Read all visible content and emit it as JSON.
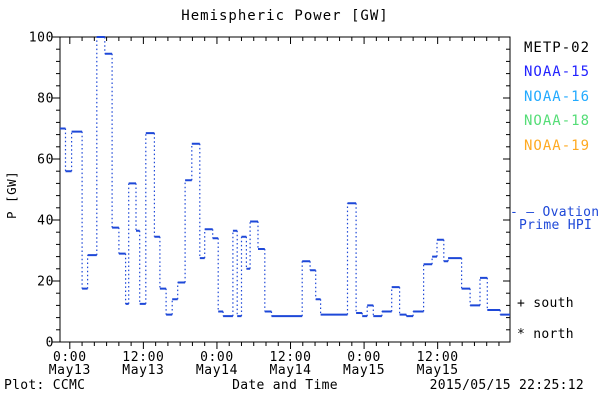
{
  "title": "Hemispheric Power [GW]",
  "footer": {
    "plot_credit": "Plot: CCMC",
    "timestamp": "2015/05/15 22:25:12"
  },
  "axes": {
    "x_label": "Date and Time",
    "y_label": "P [GW]",
    "y_ticks": [
      "0",
      "20",
      "40",
      "60",
      "80",
      "100"
    ],
    "x_ticks": [
      {
        "time": "0:00",
        "date": "May13"
      },
      {
        "time": "12:00",
        "date": "May13"
      },
      {
        "time": "0:00",
        "date": "May14"
      },
      {
        "time": "12:00",
        "date": "May14"
      },
      {
        "time": "0:00",
        "date": "May15"
      },
      {
        "time": "12:00",
        "date": "May15"
      }
    ]
  },
  "legend": {
    "satellites": [
      {
        "label": "METP-02",
        "color": "#000000"
      },
      {
        "label": "NOAA-15",
        "color": "#2222ff"
      },
      {
        "label": "NOAA-16",
        "color": "#22aaff"
      },
      {
        "label": "NOAA-18",
        "color": "#55dd77"
      },
      {
        "label": "NOAA-19",
        "color": "#ffaa22"
      }
    ],
    "ovation": {
      "dash_prefix": "- —",
      "line1": "Ovation",
      "line2": "Prime HPI",
      "color": "#1e48d8"
    },
    "markers": [
      {
        "symbol": "+",
        "label": "south"
      },
      {
        "symbol": "*",
        "label": "north"
      }
    ]
  },
  "chart_data": {
    "type": "line",
    "style": "steps-post",
    "title": "Hemispheric Power [GW]",
    "xlabel": "Date and Time",
    "ylabel": "P [GW]",
    "ylim": [
      0,
      100
    ],
    "y_major_tick": 20,
    "y_minor_tick": 4,
    "x_unit": "hours since 2015-05-13 00:00",
    "xlim": [
      -1.6,
      71.8
    ],
    "x_major_tick_hours": 12,
    "x_minor_tick_hours": 2,
    "x_major_tick_values": [
      0,
      12,
      24,
      36,
      48,
      60
    ],
    "grid": false,
    "legend_position": "right",
    "series": [
      {
        "name": "Ovation Prime HPI",
        "color": "#1e48d8",
        "steps": [
          [
            -1.6,
            70
          ],
          [
            -0.7,
            56
          ],
          [
            0.3,
            69
          ],
          [
            2.0,
            17.5
          ],
          [
            2.9,
            28.5
          ],
          [
            4.4,
            100
          ],
          [
            5.7,
            94.5
          ],
          [
            6.9,
            37.5
          ],
          [
            8.0,
            29
          ],
          [
            9.1,
            12.5
          ],
          [
            9.6,
            52
          ],
          [
            10.8,
            36.5
          ],
          [
            11.4,
            12.5
          ],
          [
            12.4,
            68.5
          ],
          [
            13.8,
            34.5
          ],
          [
            14.7,
            17.5
          ],
          [
            15.7,
            9
          ],
          [
            16.7,
            14
          ],
          [
            17.6,
            19.5
          ],
          [
            18.8,
            53
          ],
          [
            19.9,
            65
          ],
          [
            21.2,
            27.5
          ],
          [
            22.0,
            37
          ],
          [
            23.3,
            34
          ],
          [
            24.2,
            10
          ],
          [
            25.0,
            8.5
          ],
          [
            26.6,
            36.5
          ],
          [
            27.3,
            8.5
          ],
          [
            28.0,
            34.5
          ],
          [
            28.8,
            24
          ],
          [
            29.4,
            39.5
          ],
          [
            30.7,
            30.5
          ],
          [
            31.8,
            10
          ],
          [
            32.9,
            8.5
          ],
          [
            37.9,
            26.5
          ],
          [
            39.2,
            23.5
          ],
          [
            40.1,
            14
          ],
          [
            40.9,
            9
          ],
          [
            45.3,
            45.5
          ],
          [
            46.7,
            9.5
          ],
          [
            47.7,
            8.5
          ],
          [
            48.5,
            12
          ],
          [
            49.5,
            8.5
          ],
          [
            50.9,
            10
          ],
          [
            52.5,
            18
          ],
          [
            53.8,
            9
          ],
          [
            54.9,
            8.5
          ],
          [
            56.0,
            10
          ],
          [
            57.7,
            25.5
          ],
          [
            59.1,
            28
          ],
          [
            59.9,
            33.5
          ],
          [
            61.0,
            26.5
          ],
          [
            61.7,
            27.5
          ],
          [
            63.9,
            17.5
          ],
          [
            65.3,
            12
          ],
          [
            66.9,
            21
          ],
          [
            68.1,
            10.5
          ],
          [
            70.2,
            9
          ]
        ]
      }
    ]
  }
}
